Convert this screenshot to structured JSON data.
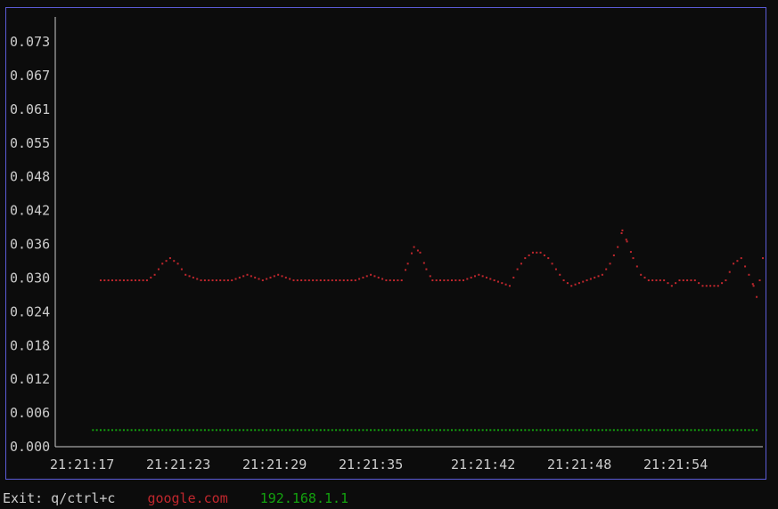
{
  "terminal": {
    "exit_hint": "Exit: q/ctrl+c"
  },
  "colors": {
    "background": "#0c0c0c",
    "border": "#5b5bd6",
    "axis": "#cccccc",
    "text": "#cccccc",
    "series_google": "#c0272d",
    "series_router": "#13a10e"
  },
  "chart_data": {
    "type": "scatter",
    "title": "",
    "xlabel": "",
    "ylabel": "",
    "ylim": [
      0.0,
      0.076
    ],
    "y_ticks": [
      "0.000",
      "0.006",
      "0.012",
      "0.018",
      "0.024",
      "0.030",
      "0.036",
      "0.042",
      "0.048",
      "0.055",
      "0.061",
      "0.067",
      "0.073"
    ],
    "x_ticks": [
      "21:21:17",
      "21:21:23",
      "21:21:29",
      "21:21:35",
      "21:21:42",
      "21:21:48",
      "21:21:54"
    ],
    "x_tick_seconds": [
      0,
      6,
      12,
      18,
      25,
      31,
      37
    ],
    "xlim_seconds": [
      0,
      44.4
    ],
    "grid": false,
    "legend_position": "bottom",
    "series": [
      {
        "name": "google.com",
        "color": "#c0272d",
        "points": [
          [
            1.5,
            0.03
          ],
          [
            3.0,
            0.03
          ],
          [
            4.5,
            0.03
          ],
          [
            5.0,
            0.031
          ],
          [
            5.5,
            0.033
          ],
          [
            6.0,
            0.034
          ],
          [
            6.5,
            0.033
          ],
          [
            7.0,
            0.031
          ],
          [
            8.0,
            0.03
          ],
          [
            10.0,
            0.03
          ],
          [
            11.0,
            0.031
          ],
          [
            12.0,
            0.03
          ],
          [
            13.0,
            0.031
          ],
          [
            14.0,
            0.03
          ],
          [
            16.0,
            0.03
          ],
          [
            18.0,
            0.03
          ],
          [
            19.0,
            0.031
          ],
          [
            20.0,
            0.03
          ],
          [
            21.0,
            0.03
          ],
          [
            21.4,
            0.033
          ],
          [
            21.8,
            0.036
          ],
          [
            22.2,
            0.035
          ],
          [
            22.6,
            0.032
          ],
          [
            23.0,
            0.03
          ],
          [
            24.0,
            0.03
          ],
          [
            25.0,
            0.03
          ],
          [
            26.0,
            0.031
          ],
          [
            27.0,
            0.03
          ],
          [
            28.0,
            0.029
          ],
          [
            28.5,
            0.032
          ],
          [
            29.0,
            0.034
          ],
          [
            29.5,
            0.035
          ],
          [
            30.0,
            0.035
          ],
          [
            30.5,
            0.034
          ],
          [
            31.0,
            0.032
          ],
          [
            31.5,
            0.03
          ],
          [
            32.0,
            0.029
          ],
          [
            33.0,
            0.03
          ],
          [
            34.0,
            0.031
          ],
          [
            34.5,
            0.033
          ],
          [
            35.0,
            0.036
          ],
          [
            35.3,
            0.039
          ],
          [
            35.6,
            0.037
          ],
          [
            36.0,
            0.034
          ],
          [
            36.5,
            0.031
          ],
          [
            37.0,
            0.03
          ],
          [
            38.0,
            0.03
          ],
          [
            38.5,
            0.029
          ],
          [
            39.0,
            0.03
          ],
          [
            40.0,
            0.03
          ],
          [
            40.5,
            0.029
          ],
          [
            41.0,
            0.029
          ],
          [
            41.5,
            0.029
          ],
          [
            42.0,
            0.03
          ],
          [
            42.5,
            0.033
          ],
          [
            43.0,
            0.034
          ],
          [
            43.5,
            0.031
          ],
          [
            43.8,
            0.029
          ],
          [
            44.0,
            0.027
          ],
          [
            44.2,
            0.03
          ],
          [
            44.4,
            0.034
          ]
        ]
      },
      {
        "name": "192.168.1.1",
        "color": "#13a10e",
        "points": [
          [
            1.0,
            0.003
          ],
          [
            5.0,
            0.003
          ],
          [
            10.0,
            0.003
          ],
          [
            15.0,
            0.003
          ],
          [
            20.0,
            0.003
          ],
          [
            25.0,
            0.003
          ],
          [
            30.0,
            0.003
          ],
          [
            33.0,
            0.003
          ],
          [
            33.5,
            0.003
          ],
          [
            34.0,
            0.003
          ],
          [
            35.0,
            0.003
          ],
          [
            38.0,
            0.003
          ],
          [
            40.0,
            0.003
          ],
          [
            42.0,
            0.003
          ],
          [
            44.0,
            0.003
          ]
        ]
      }
    ]
  }
}
